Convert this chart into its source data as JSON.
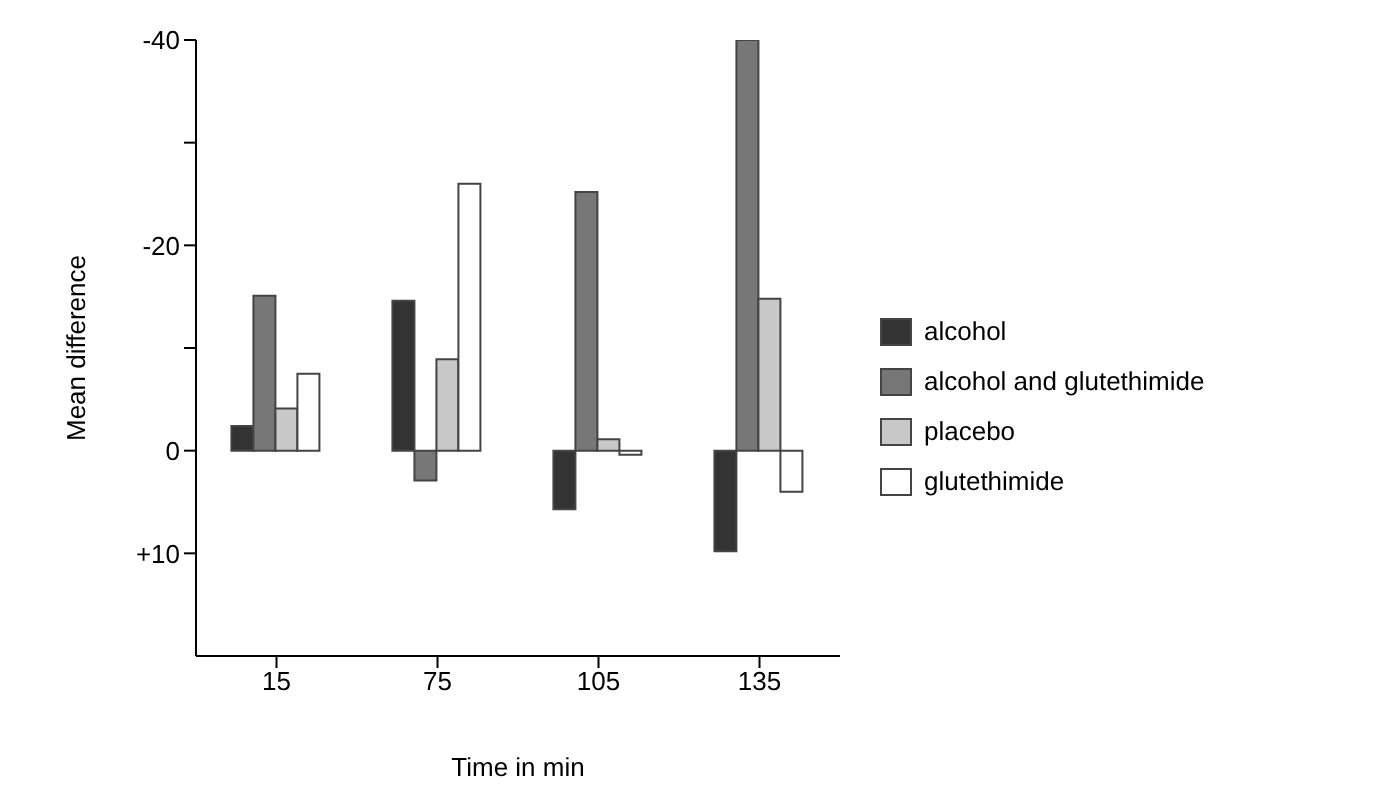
{
  "chart_data": {
    "type": "bar",
    "xlabel": "Time in min",
    "ylabel": "Mean difference",
    "categories": [
      "15",
      "75",
      "105",
      "135"
    ],
    "series": [
      {
        "name": "alcohol",
        "color": "#333333",
        "values": [
          -2.4,
          -14.6,
          5.7,
          9.8
        ]
      },
      {
        "name": "alcohol and glutethimide",
        "color": "#777777",
        "values": [
          -15.1,
          2.9,
          -25.2,
          -40
        ]
      },
      {
        "name": "placebo",
        "color": "#c8c8c8",
        "values": [
          -4.1,
          -8.9,
          -1.1,
          -14.8
        ]
      },
      {
        "name": "glutethimide",
        "color": "#ffffff",
        "values": [
          -7.5,
          -26,
          0.4,
          4
        ]
      }
    ],
    "ylim": [
      20,
      -40
    ],
    "yticks": [
      -40,
      {
        "value": -30,
        "label": null
      },
      -20,
      {
        "value": -10,
        "label": null
      },
      0,
      {
        "value": 10,
        "label": "+10"
      }
    ],
    "grid": false,
    "legend": "right"
  }
}
